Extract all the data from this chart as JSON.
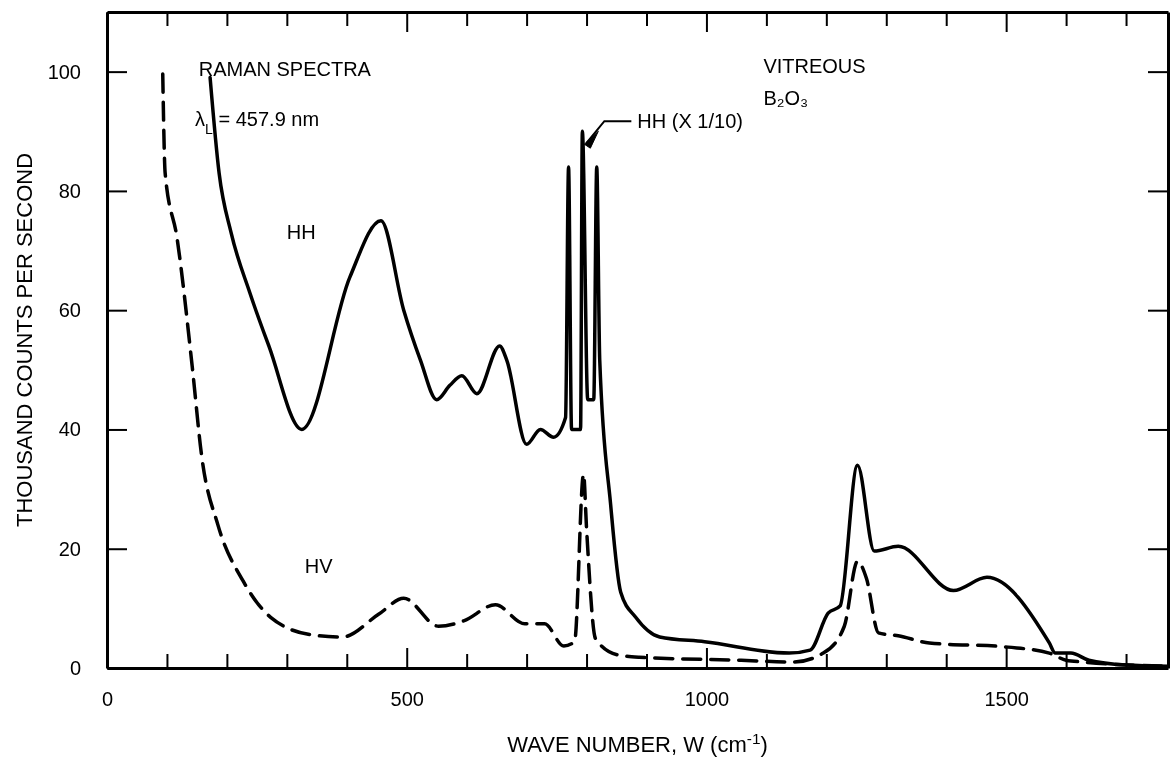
{
  "chart_data": {
    "type": "line",
    "xlabel": "WAVE NUMBER, W (cm$^{-1}$)",
    "ylabel": "THOUSAND COUNTS PER SECOND",
    "xlim": [
      0,
      1770
    ],
    "ylim": [
      0,
      110
    ],
    "xticks": [
      0,
      {
        "value": 100,
        "label": null
      },
      {
        "value": 200,
        "label": null
      },
      {
        "value": 300,
        "label": null
      },
      {
        "value": 400,
        "label": null
      },
      500,
      {
        "value": 600,
        "label": null
      },
      {
        "value": 700,
        "label": null
      },
      {
        "value": 800,
        "label": null
      },
      {
        "value": 900,
        "label": null
      },
      1000,
      {
        "value": 1100,
        "label": null
      },
      {
        "value": 1200,
        "label": null
      },
      {
        "value": 1300,
        "label": null
      },
      {
        "value": 1400,
        "label": null
      },
      1500,
      {
        "value": 1600,
        "label": null
      },
      {
        "value": 1700,
        "label": null
      }
    ],
    "yticks": [
      0,
      20,
      40,
      60,
      80,
      100
    ],
    "grid": false,
    "series": [
      {
        "name": "HH",
        "color": "#000000",
        "line_style": "solid",
        "x": [
          172,
          187,
          207,
          238,
          270,
          325,
          405,
          457,
          495,
          523,
          550,
          572,
          592,
          617,
          655,
          667,
          700,
          723,
          745,
          765,
          770,
          775,
          790,
          793,
          802,
          812,
          817,
          822,
          840,
          857,
          882,
          922,
          997,
          1138,
          1173,
          1203,
          1223,
          1252,
          1280,
          1320,
          1412,
          1468,
          1572,
          1582,
          1608,
          1638,
          1700,
          1770
        ],
        "values": [
          99,
          83,
          73,
          63,
          54,
          40,
          65.5,
          75,
          60,
          51.6,
          45,
          47.4,
          49,
          46,
          54,
          51.6,
          37.5,
          40,
          38.7,
          42,
          84,
          40,
          40,
          90,
          45,
          45,
          84,
          51.6,
          27.6,
          12.7,
          8.5,
          5.2,
          4.4,
          2.5,
          3,
          9.2,
          10.4,
          34,
          19.6,
          20.4,
          13,
          15.2,
          4.2,
          2.5,
          2.5,
          1.3,
          0.5,
          0.3
        ]
      },
      {
        "name": "HV",
        "color": "#000000",
        "line_style": "dashed",
        "x": [
          93,
          97,
          117,
          142,
          158,
          185,
          227,
          273,
          345,
          393,
          453,
          495,
          553,
          595,
          648,
          697,
          730,
          762,
          780,
          795,
          800,
          815,
          852,
          888,
          1058,
          1145,
          1195,
          1230,
          1252,
          1267,
          1287,
          1320,
          1372,
          1503,
          1572,
          1600,
          1628,
          1770
        ],
        "values": [
          99.6,
          83,
          72,
          50.7,
          35.5,
          24,
          14.6,
          8.5,
          5.5,
          5.2,
          9,
          11.7,
          7,
          7.9,
          10.6,
          7.4,
          7.4,
          3.7,
          4.4,
          32.5,
          23.4,
          4.9,
          2.2,
          1.8,
          1.3,
          1,
          2.5,
          7,
          17.9,
          15,
          5.9,
          5.4,
          4.2,
          3.5,
          2.5,
          1.3,
          1,
          0.3
        ]
      }
    ],
    "annotations": [
      "RAMAN SPECTRA",
      "λ$_{L}$ = 457.9 nm",
      "VITREOUS",
      "B₂O₃",
      {
        "text": "HH (X 1/10)",
        "x": 793,
        "y": 88
      }
    ]
  }
}
